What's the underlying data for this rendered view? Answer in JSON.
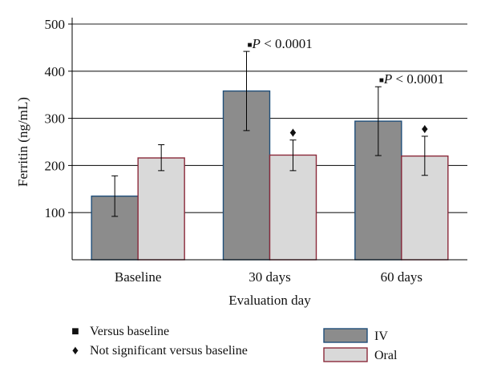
{
  "chart_data": {
    "type": "bar",
    "categories": [
      "Baseline",
      "30 days",
      "60 days"
    ],
    "series": [
      {
        "name": "IV",
        "values": [
          135,
          358,
          294
        ],
        "error_low": [
          92,
          274,
          221
        ],
        "error_high": [
          178,
          442,
          367
        ],
        "color": "#8c8c8c",
        "edge_color": "#1f4e79"
      },
      {
        "name": "Oral",
        "values": [
          216,
          222,
          220
        ],
        "error_low": [
          189,
          189,
          179
        ],
        "error_high": [
          244,
          254,
          262
        ],
        "color": "#d9d9d9",
        "edge_color": "#8b2a3a"
      }
    ],
    "xlabel": "Evaluation day",
    "ylabel": "Ferritin (ng/mL)",
    "ylim": [
      0,
      500
    ],
    "yticks": [
      100,
      200,
      300,
      400,
      500
    ],
    "grid": true,
    "annotations": [
      {
        "category": "30 days",
        "series": "IV",
        "marker": "■",
        "p_label": "P",
        "text": " < 0.0001"
      },
      {
        "category": "30 days",
        "series": "Oral",
        "marker": "♦",
        "text": ""
      },
      {
        "category": "60 days",
        "series": "IV",
        "marker": "■",
        "p_label": "P",
        "text": " < 0.0001"
      },
      {
        "category": "60 days",
        "series": "Oral",
        "marker": "♦",
        "text": ""
      }
    ],
    "key": [
      {
        "symbol": "■",
        "text": "Versus baseline"
      },
      {
        "symbol": "♦",
        "text": "Not significant versus baseline"
      }
    ],
    "legend_position": "bottom-right"
  }
}
